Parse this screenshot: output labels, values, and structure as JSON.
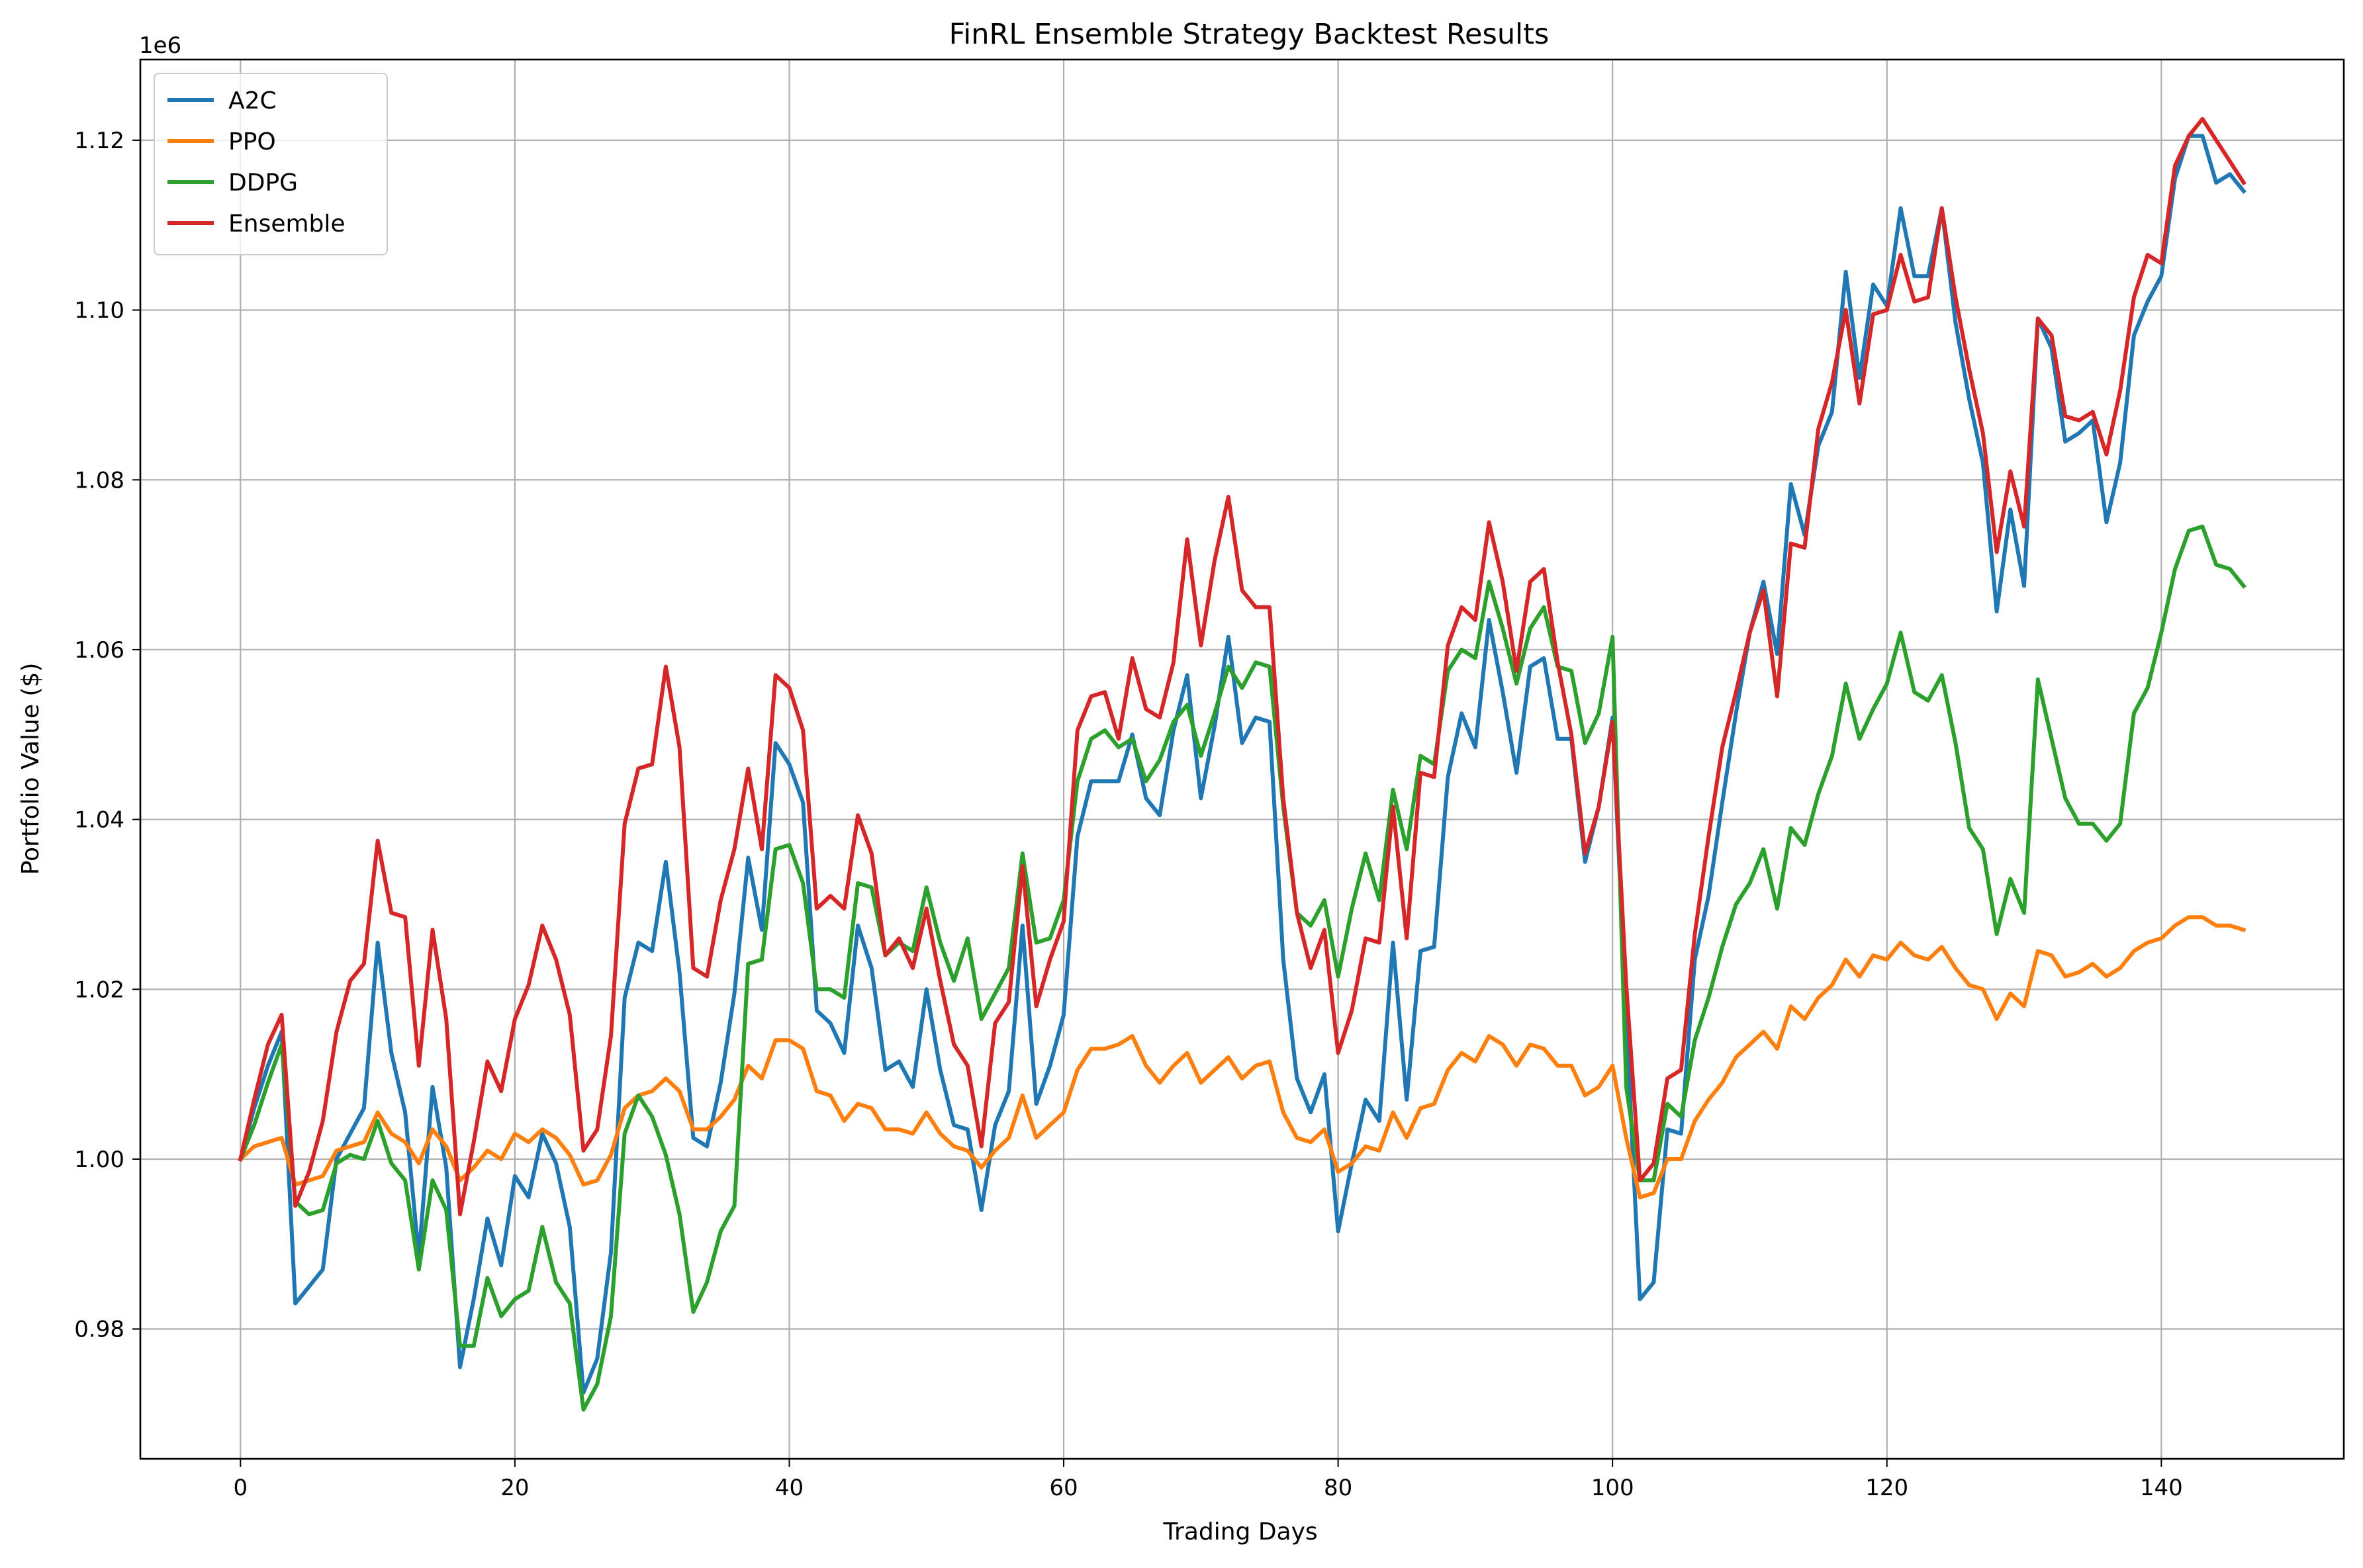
{
  "chart_data": {
    "type": "line",
    "title": "FinRL Ensemble Strategy Backtest Results",
    "xlabel": "Trading Days",
    "ylabel": "Portfolio Value ($)",
    "y_offset_label": "1e6",
    "xlim": [
      -7.3,
      153.3
    ],
    "ylim": [
      0.9647,
      1.1295
    ],
    "x_ticks": [
      0,
      20,
      40,
      60,
      80,
      100,
      120,
      140
    ],
    "x_tick_labels": [
      "0",
      "20",
      "40",
      "60",
      "80",
      "100",
      "120",
      "140"
    ],
    "y_ticks": [
      0.98,
      1.0,
      1.02,
      1.04,
      1.06,
      1.08,
      1.1,
      1.12
    ],
    "y_tick_labels": [
      "0.98",
      "1.00",
      "1.02",
      "1.04",
      "1.06",
      "1.08",
      "1.10",
      "1.12"
    ],
    "grid": true,
    "legend_position": "top-left",
    "x": [
      0,
      1,
      2,
      3,
      4,
      5,
      6,
      7,
      8,
      9,
      10,
      11,
      12,
      13,
      14,
      15,
      16,
      17,
      18,
      19,
      20,
      21,
      22,
      23,
      24,
      25,
      26,
      27,
      28,
      29,
      30,
      31,
      32,
      33,
      34,
      35,
      36,
      37,
      38,
      39,
      40,
      41,
      42,
      43,
      44,
      45,
      46,
      47,
      48,
      49,
      50,
      51,
      52,
      53,
      54,
      55,
      56,
      57,
      58,
      59,
      60,
      61,
      62,
      63,
      64,
      65,
      66,
      67,
      68,
      69,
      70,
      71,
      72,
      73,
      74,
      75,
      76,
      77,
      78,
      79,
      80,
      81,
      82,
      83,
      84,
      85,
      86,
      87,
      88,
      89,
      90,
      91,
      92,
      93,
      94,
      95,
      96,
      97,
      98,
      99,
      100,
      101,
      102,
      103,
      104,
      105,
      106,
      107,
      108,
      109,
      110,
      111,
      112,
      113,
      114,
      115,
      116,
      117,
      118,
      119,
      120,
      121,
      122,
      123,
      124,
      125,
      126,
      127,
      128,
      129,
      130,
      131,
      132,
      133,
      134,
      135,
      136,
      137,
      138,
      139,
      140,
      141,
      142,
      143,
      144,
      145,
      146
    ],
    "series": [
      {
        "name": "A2C",
        "color": "#1f77b4",
        "values": [
          1.0,
          1.006,
          1.011,
          1.015,
          0.983,
          0.985,
          0.987,
          1.0,
          1.003,
          1.006,
          1.0255,
          1.0125,
          1.0055,
          0.9885,
          1.0085,
          0.999,
          0.9755,
          0.9835,
          0.993,
          0.9875,
          0.998,
          0.9955,
          1.003,
          0.9995,
          0.992,
          0.9725,
          0.9765,
          0.989,
          1.019,
          1.0255,
          1.0245,
          1.035,
          1.022,
          1.0025,
          1.0015,
          1.009,
          1.0195,
          1.0355,
          1.027,
          1.049,
          1.0465,
          1.042,
          1.0175,
          1.016,
          1.0125,
          1.0275,
          1.0225,
          1.0105,
          1.0115,
          1.0085,
          1.02,
          1.0105,
          1.004,
          1.0035,
          0.994,
          1.004,
          1.008,
          1.0275,
          1.0065,
          1.011,
          1.017,
          1.038,
          1.0445,
          1.0445,
          1.0445,
          1.05,
          1.0425,
          1.0405,
          1.0505,
          1.057,
          1.0425,
          1.051,
          1.0615,
          1.049,
          1.052,
          1.0515,
          1.0235,
          1.0095,
          1.0055,
          1.01,
          0.9915,
          0.9995,
          1.007,
          1.0045,
          1.0255,
          1.007,
          1.0245,
          1.025,
          1.045,
          1.0525,
          1.0485,
          1.0635,
          1.055,
          1.0455,
          1.058,
          1.059,
          1.0495,
          1.0495,
          1.035,
          1.0415,
          1.052,
          1.0165,
          0.9835,
          0.9855,
          1.0035,
          1.003,
          1.0235,
          1.031,
          1.042,
          1.0525,
          1.062,
          1.068,
          1.0595,
          1.0795,
          1.0735,
          1.084,
          1.088,
          1.1045,
          1.092,
          1.103,
          1.1005,
          1.112,
          1.104,
          1.104,
          1.112,
          1.0985,
          1.0895,
          1.082,
          1.0645,
          1.0765,
          1.0675,
          1.099,
          1.0955,
          1.0845,
          1.0855,
          1.087,
          1.075,
          1.082,
          1.097,
          1.101,
          1.104,
          1.1155,
          1.1205,
          1.1205,
          1.115,
          1.116,
          1.114
        ]
      },
      {
        "name": "PPO",
        "color": "#ff7f0e",
        "values": [
          1.0,
          1.0015,
          1.002,
          1.0025,
          0.997,
          0.9975,
          0.998,
          1.001,
          1.0015,
          1.002,
          1.0055,
          1.003,
          1.002,
          0.9995,
          1.0035,
          1.0015,
          0.9975,
          0.999,
          1.001,
          1.0,
          1.003,
          1.002,
          1.0035,
          1.0025,
          1.0005,
          0.997,
          0.9975,
          1.0005,
          1.006,
          1.0075,
          1.008,
          1.0095,
          1.008,
          1.0035,
          1.0035,
          1.005,
          1.007,
          1.011,
          1.0095,
          1.014,
          1.014,
          1.013,
          1.008,
          1.0075,
          1.0045,
          1.0065,
          1.006,
          1.0035,
          1.0035,
          1.003,
          1.0055,
          1.003,
          1.0015,
          1.001,
          0.999,
          1.001,
          1.0025,
          1.0075,
          1.0025,
          1.004,
          1.0055,
          1.0105,
          1.013,
          1.013,
          1.0135,
          1.0145,
          1.011,
          1.009,
          1.011,
          1.0125,
          1.009,
          1.0105,
          1.012,
          1.0095,
          1.011,
          1.0115,
          1.0055,
          1.0025,
          1.002,
          1.0035,
          0.9985,
          0.9995,
          1.0015,
          1.001,
          1.0055,
          1.0025,
          1.006,
          1.0065,
          1.0105,
          1.0125,
          1.0115,
          1.0145,
          1.0135,
          1.011,
          1.0135,
          1.013,
          1.011,
          1.011,
          1.0075,
          1.0085,
          1.011,
          1.0025,
          0.9955,
          0.996,
          1.0,
          1.0,
          1.0045,
          1.007,
          1.009,
          1.012,
          1.0135,
          1.015,
          1.013,
          1.018,
          1.0165,
          1.019,
          1.0205,
          1.0235,
          1.0215,
          1.024,
          1.0235,
          1.0255,
          1.024,
          1.0235,
          1.025,
          1.0225,
          1.0205,
          1.02,
          1.0165,
          1.0195,
          1.018,
          1.0245,
          1.024,
          1.0215,
          1.022,
          1.023,
          1.0215,
          1.0225,
          1.0245,
          1.0255,
          1.026,
          1.0275,
          1.0285,
          1.0285,
          1.0275,
          1.0275,
          1.027
        ]
      },
      {
        "name": "DDPG",
        "color": "#2ca02c",
        "values": [
          1.0,
          1.004,
          1.009,
          1.0135,
          0.995,
          0.9935,
          0.994,
          0.9995,
          1.0005,
          1.0,
          1.0045,
          0.9995,
          0.9975,
          0.987,
          0.9975,
          0.994,
          0.978,
          0.978,
          0.986,
          0.9815,
          0.9835,
          0.9845,
          0.992,
          0.9855,
          0.983,
          0.9705,
          0.9735,
          0.9815,
          1.003,
          1.0075,
          1.005,
          1.0005,
          0.9935,
          0.982,
          0.9855,
          0.9915,
          0.9945,
          1.023,
          1.0235,
          1.0365,
          1.037,
          1.0325,
          1.02,
          1.02,
          1.019,
          1.0325,
          1.032,
          1.024,
          1.0255,
          1.0245,
          1.032,
          1.0255,
          1.021,
          1.026,
          1.0165,
          1.0195,
          1.0225,
          1.036,
          1.0255,
          1.026,
          1.0305,
          1.0445,
          1.0495,
          1.0505,
          1.0485,
          1.0495,
          1.0445,
          1.047,
          1.0515,
          1.0535,
          1.0475,
          1.0525,
          1.058,
          1.0555,
          1.0585,
          1.058,
          1.0415,
          1.029,
          1.0275,
          1.0305,
          1.0215,
          1.0295,
          1.036,
          1.0305,
          1.0435,
          1.0365,
          1.0475,
          1.0465,
          1.0575,
          1.06,
          1.059,
          1.068,
          1.0625,
          1.056,
          1.0625,
          1.065,
          1.058,
          1.0575,
          1.049,
          1.0525,
          1.0615,
          1.0085,
          0.9975,
          0.9975,
          1.0065,
          1.005,
          1.014,
          1.019,
          1.025,
          1.03,
          1.0325,
          1.0365,
          1.0295,
          1.039,
          1.037,
          1.043,
          1.0475,
          1.056,
          1.0495,
          1.053,
          1.056,
          1.062,
          1.055,
          1.054,
          1.057,
          1.049,
          1.039,
          1.0365,
          1.0265,
          1.033,
          1.029,
          1.0565,
          1.0495,
          1.0425,
          1.0395,
          1.0395,
          1.0375,
          1.0395,
          1.0525,
          1.0555,
          1.062,
          1.0695,
          1.074,
          1.0745,
          1.07,
          1.0695,
          1.0675
        ]
      },
      {
        "name": "Ensemble",
        "color": "#d62728",
        "values": [
          1.0,
          1.007,
          1.0135,
          1.017,
          0.9945,
          0.9985,
          1.0045,
          1.015,
          1.021,
          1.023,
          1.0375,
          1.029,
          1.0285,
          1.011,
          1.027,
          1.0165,
          0.9935,
          1.002,
          1.0115,
          1.008,
          1.0165,
          1.0205,
          1.0275,
          1.0235,
          1.017,
          1.001,
          1.0035,
          1.0145,
          1.0395,
          1.046,
          1.0465,
          1.058,
          1.0485,
          1.0225,
          1.0215,
          1.0305,
          1.0365,
          1.046,
          1.0365,
          1.057,
          1.0555,
          1.0505,
          1.0295,
          1.031,
          1.0295,
          1.0405,
          1.036,
          1.024,
          1.026,
          1.0225,
          1.0295,
          1.021,
          1.0135,
          1.011,
          1.0015,
          1.016,
          1.0185,
          1.0345,
          1.018,
          1.0235,
          1.028,
          1.0505,
          1.0545,
          1.055,
          1.0495,
          1.059,
          1.053,
          1.052,
          1.0585,
          1.073,
          1.0605,
          1.0705,
          1.078,
          1.067,
          1.065,
          1.065,
          1.0425,
          1.029,
          1.0225,
          1.027,
          1.0125,
          1.0175,
          1.026,
          1.0255,
          1.0415,
          1.026,
          1.0455,
          1.045,
          1.0605,
          1.065,
          1.0635,
          1.075,
          1.068,
          1.0575,
          1.068,
          1.0695,
          1.0585,
          1.05,
          1.036,
          1.0415,
          1.0515,
          1.0205,
          0.9975,
          0.9995,
          1.0095,
          1.0105,
          1.0265,
          1.038,
          1.0485,
          1.055,
          1.062,
          1.067,
          1.0545,
          1.0725,
          1.072,
          1.086,
          1.0915,
          1.1,
          1.089,
          1.0995,
          1.1,
          1.1065,
          1.101,
          1.1015,
          1.112,
          1.1015,
          1.093,
          1.0855,
          1.0715,
          1.081,
          1.0745,
          1.099,
          1.097,
          1.0875,
          1.087,
          1.088,
          1.083,
          1.0905,
          1.1015,
          1.1065,
          1.1055,
          1.117,
          1.1205,
          1.1225,
          1.12,
          1.1175,
          1.115
        ]
      }
    ]
  }
}
